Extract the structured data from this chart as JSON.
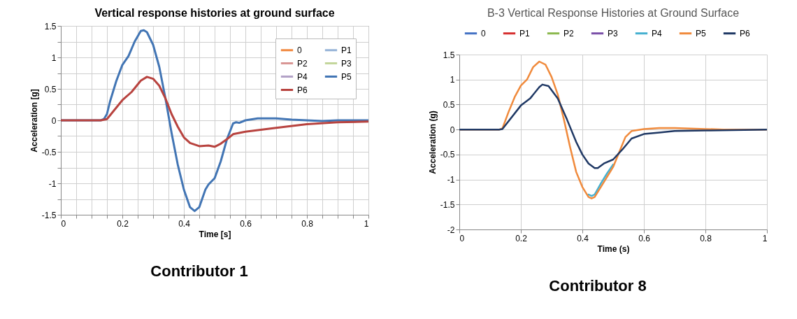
{
  "chart_data": [
    {
      "type": "line",
      "title": "Vertical response histories at ground surface",
      "xlabel": "Time [s]",
      "ylabel": "Acceleration [g]",
      "annotations": [
        "Contributor 1"
      ],
      "xlim": [
        0,
        1
      ],
      "ylim": [
        -1.5,
        1.5
      ],
      "xticks": [
        0,
        {
          "value": 0.05,
          "label": null
        },
        {
          "value": 0.1,
          "label": null
        },
        {
          "value": 0.15,
          "label": null
        },
        0.2,
        {
          "value": 0.25,
          "label": null
        },
        {
          "value": 0.3,
          "label": null
        },
        {
          "value": 0.35,
          "label": null
        },
        0.4,
        {
          "value": 0.45,
          "label": null
        },
        {
          "value": 0.5,
          "label": null
        },
        {
          "value": 0.55,
          "label": null
        },
        0.6,
        {
          "value": 0.65,
          "label": null
        },
        {
          "value": 0.7,
          "label": null
        },
        {
          "value": 0.75,
          "label": null
        },
        0.8,
        {
          "value": 0.85,
          "label": null
        },
        {
          "value": 0.9,
          "label": null
        },
        {
          "value": 0.95,
          "label": null
        },
        1
      ],
      "yticks": [
        -1.5,
        {
          "value": -1.25,
          "label": null
        },
        -1,
        {
          "value": -0.75,
          "label": null
        },
        -0.5,
        {
          "value": -0.25,
          "label": null
        },
        0,
        {
          "value": 0.25,
          "label": null
        },
        0.5,
        {
          "value": 0.75,
          "label": null
        },
        1,
        {
          "value": 1.25,
          "label": null
        },
        1.5
      ],
      "grid": true,
      "legend": "top right",
      "line_style": "solid",
      "series": [
        {
          "name": "0",
          "color": "#f0883e"
        },
        {
          "name": "P1",
          "color": "#95b3d7"
        },
        {
          "name": "P2",
          "color": "#d99694"
        },
        {
          "name": "P3",
          "color": "#c3d69b"
        },
        {
          "name": "P4",
          "color": "#b3a2c7"
        },
        {
          "name": "P5",
          "color": "#4275b4",
          "x": [
            0,
            0.1,
            0.13,
            0.14,
            0.15,
            0.16,
            0.18,
            0.2,
            0.22,
            0.24,
            0.26,
            0.27,
            0.28,
            0.3,
            0.32,
            0.34,
            0.36,
            0.38,
            0.4,
            0.42,
            0.435,
            0.45,
            0.47,
            0.48,
            0.5,
            0.52,
            0.54,
            0.56,
            0.57,
            0.58,
            0.6,
            0.64,
            0.7,
            0.75,
            0.8,
            0.85,
            0.9,
            1
          ],
          "values": [
            0,
            0,
            0,
            0.02,
            0.1,
            0.3,
            0.62,
            0.88,
            1.02,
            1.25,
            1.42,
            1.43,
            1.4,
            1.2,
            0.85,
            0.35,
            -0.2,
            -0.7,
            -1.1,
            -1.38,
            -1.44,
            -1.38,
            -1.1,
            -1.02,
            -0.92,
            -0.65,
            -0.3,
            -0.05,
            -0.03,
            -0.04,
            0,
            0.03,
            0.03,
            0.01,
            0,
            -0.01,
            0,
            0
          ]
        },
        {
          "name": "P6",
          "color": "#b8433f",
          "x": [
            0,
            0.13,
            0.15,
            0.2,
            0.23,
            0.26,
            0.28,
            0.3,
            0.32,
            0.34,
            0.36,
            0.38,
            0.4,
            0.42,
            0.45,
            0.48,
            0.5,
            0.52,
            0.54,
            0.56,
            0.6,
            0.7,
            0.8,
            0.9,
            1
          ],
          "values": [
            0,
            0,
            0.02,
            0.32,
            0.45,
            0.63,
            0.69,
            0.66,
            0.55,
            0.35,
            0.1,
            -0.1,
            -0.27,
            -0.36,
            -0.41,
            -0.4,
            -0.42,
            -0.37,
            -0.3,
            -0.22,
            -0.18,
            -0.12,
            -0.06,
            -0.03,
            -0.02
          ]
        }
      ]
    },
    {
      "type": "line",
      "title": "B-3 Vertical Response  Histories at Ground Surface",
      "xlabel": "Time (s)",
      "ylabel": "Acceleration (g)",
      "annotations": [
        "Contributor 8"
      ],
      "xlim": [
        0,
        1
      ],
      "ylim": [
        -2,
        1.5
      ],
      "xticks": [
        0,
        0.2,
        0.4,
        0.6,
        0.8,
        1
      ],
      "yticks": [
        -2,
        -1.5,
        -1,
        -0.5,
        0,
        0.5,
        1,
        1.5
      ],
      "grid": true,
      "legend": "top",
      "line_style": "solid",
      "series": [
        {
          "name": "0",
          "color": "#4472c4"
        },
        {
          "name": "P1",
          "color": "#d62f2f"
        },
        {
          "name": "P2",
          "color": "#8bb84e"
        },
        {
          "name": "P3",
          "color": "#7a4fa8"
        },
        {
          "name": "P4",
          "color": "#45b0d0",
          "x": [
            0.42,
            0.43,
            0.44,
            0.46,
            0.48,
            0.5
          ],
          "values": [
            -1.3,
            -1.33,
            -1.3,
            -1.08,
            -0.88,
            -0.7
          ]
        },
        {
          "name": "P5",
          "color": "#f08a3c",
          "x": [
            0,
            0.13,
            0.14,
            0.16,
            0.18,
            0.2,
            0.22,
            0.24,
            0.26,
            0.28,
            0.3,
            0.32,
            0.34,
            0.36,
            0.38,
            0.4,
            0.42,
            0.43,
            0.44,
            0.46,
            0.48,
            0.5,
            0.52,
            0.54,
            0.56,
            0.6,
            0.65,
            0.7,
            0.75,
            0.8,
            0.86,
            1
          ],
          "values": [
            0,
            0,
            0.02,
            0.35,
            0.65,
            0.88,
            1.0,
            1.25,
            1.36,
            1.3,
            1.05,
            0.7,
            0.2,
            -0.35,
            -0.85,
            -1.15,
            -1.35,
            -1.38,
            -1.35,
            -1.15,
            -0.95,
            -0.75,
            -0.45,
            -0.15,
            -0.03,
            0.01,
            0.03,
            0.03,
            0.02,
            0.01,
            0,
            0
          ]
        },
        {
          "name": "P6",
          "color": "#1f3864",
          "x": [
            0,
            0.13,
            0.14,
            0.2,
            0.23,
            0.26,
            0.27,
            0.29,
            0.32,
            0.35,
            0.38,
            0.4,
            0.42,
            0.44,
            0.45,
            0.47,
            0.5,
            0.53,
            0.56,
            0.6,
            0.65,
            0.7,
            0.8,
            1
          ],
          "values": [
            0,
            0,
            0.01,
            0.48,
            0.62,
            0.85,
            0.9,
            0.87,
            0.62,
            0.2,
            -0.25,
            -0.5,
            -0.68,
            -0.77,
            -0.77,
            -0.68,
            -0.6,
            -0.4,
            -0.18,
            -0.09,
            -0.06,
            -0.03,
            -0.02,
            0
          ]
        }
      ]
    }
  ]
}
